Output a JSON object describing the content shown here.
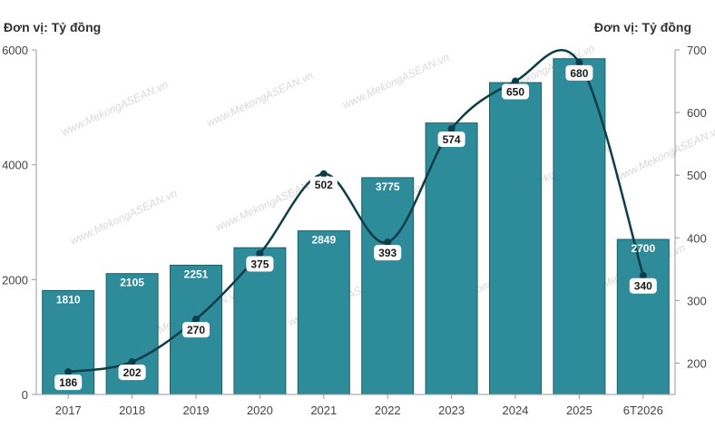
{
  "chart_data": {
    "type": "bar",
    "categories": [
      "2017",
      "2018",
      "2019",
      "2020",
      "2021",
      "2022",
      "2023",
      "2024",
      "2025",
      "6T2026"
    ],
    "series": [
      {
        "values": [
          1810,
          2105,
          2251,
          2555,
          2849,
          3775,
          4727,
          5430,
          5846,
          2700
        ],
        "data_labels": [
          "1810",
          "2105",
          "2251",
          "",
          "2849",
          "3775",
          "",
          "",
          "",
          "2700"
        ],
        "axis": "left",
        "color": "#2e8b9a"
      },
      {
        "values": [
          186,
          202,
          270,
          375,
          502,
          393,
          574,
          650,
          680,
          340
        ],
        "data_labels": [
          "186",
          "202",
          "270",
          "375",
          "502",
          "393",
          "574",
          "650",
          "680",
          "340"
        ],
        "axis": "right",
        "type": "line",
        "color": "#0e3d4a"
      }
    ],
    "ylabel_left": "Đơn vị: Tỷ đồng",
    "ylabel_right": "Đơn vị: Tỷ đồng",
    "ylim_left": [
      0,
      6000
    ],
    "ylim_right": [
      150,
      700
    ],
    "yticks_left": [
      "0",
      "2000",
      "4000",
      "6000"
    ],
    "yticks_right": [
      "200",
      "300",
      "400",
      "500",
      "600",
      "700"
    ],
    "grid": false,
    "watermark": "www.MekongASEAN.vn"
  }
}
